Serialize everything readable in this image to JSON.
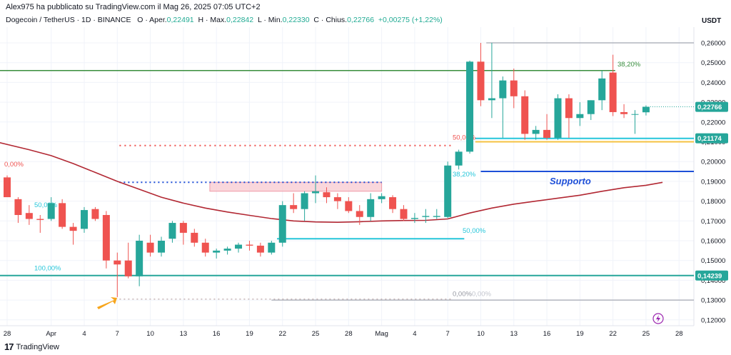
{
  "header": {
    "published_by": "Alex975 ha pubblicato su TradingView.com il Mag 26, 2025 07:05 UTC+2",
    "symbol": "Dogecoin / TetherUS · 1D · BINANCE",
    "open_label": "O · Aper.",
    "open": "0,22491",
    "high_label": "H · Max.",
    "high": "0,22842",
    "low_label": "L · Min.",
    "low": "0,22330",
    "close_label": "C · Chius.",
    "close": "0,22766",
    "change": "+0,00275 (+1,22%)"
  },
  "footer": {
    "brand": "TradingView",
    "logo": "17"
  },
  "chart_data": {
    "type": "candlestick",
    "unit": "USDT",
    "ylim": [
      0.1165,
      0.2685
    ],
    "y_ticks": [
      "0,26000",
      "0,25000",
      "0,24000",
      "0,23000",
      "0,22000",
      "0,21000",
      "0,20000",
      "0,19000",
      "0,18000",
      "0,17000",
      "0,16000",
      "0,15000",
      "0,14000",
      "0,13000",
      "0,12000"
    ],
    "x_tick_labels": [
      {
        "day": 0,
        "label": "28"
      },
      {
        "day": 4,
        "label": "Apr"
      },
      {
        "day": 7,
        "label": "4"
      },
      {
        "day": 10,
        "label": "7"
      },
      {
        "day": 13,
        "label": "10"
      },
      {
        "day": 16,
        "label": "13"
      },
      {
        "day": 19,
        "label": "16"
      },
      {
        "day": 22,
        "label": "19"
      },
      {
        "day": 25,
        "label": "22"
      },
      {
        "day": 28,
        "label": "25"
      },
      {
        "day": 31,
        "label": "28"
      },
      {
        "day": 34,
        "label": "Mag"
      },
      {
        "day": 37,
        "label": "4"
      },
      {
        "day": 40,
        "label": "7"
      },
      {
        "day": 43,
        "label": "10"
      },
      {
        "day": 46,
        "label": "13"
      },
      {
        "day": 49,
        "label": "16"
      },
      {
        "day": 52,
        "label": "19"
      },
      {
        "day": 55,
        "label": "22"
      },
      {
        "day": 58,
        "label": "25"
      },
      {
        "day": 61,
        "label": "28"
      }
    ],
    "candles": [
      {
        "d": 0,
        "o": 0.192,
        "h": 0.193,
        "l": 0.182,
        "c": 0.182
      },
      {
        "d": 1,
        "o": 0.181,
        "h": 0.182,
        "l": 0.169,
        "c": 0.173
      },
      {
        "d": 2,
        "o": 0.174,
        "h": 0.178,
        "l": 0.168,
        "c": 0.171
      },
      {
        "d": 3,
        "o": 0.171,
        "h": 0.173,
        "l": 0.164,
        "c": 0.1705
      },
      {
        "d": 4,
        "o": 0.171,
        "h": 0.182,
        "l": 0.17,
        "c": 0.179
      },
      {
        "d": 5,
        "o": 0.179,
        "h": 0.181,
        "l": 0.166,
        "c": 0.167
      },
      {
        "d": 6,
        "o": 0.167,
        "h": 0.169,
        "l": 0.158,
        "c": 0.165
      },
      {
        "d": 7,
        "o": 0.166,
        "h": 0.177,
        "l": 0.164,
        "c": 0.1755
      },
      {
        "d": 8,
        "o": 0.176,
        "h": 0.177,
        "l": 0.17,
        "c": 0.171
      },
      {
        "d": 9,
        "o": 0.173,
        "h": 0.175,
        "l": 0.146,
        "c": 0.15
      },
      {
        "d": 10,
        "o": 0.15,
        "h": 0.154,
        "l": 0.1315,
        "c": 0.148
      },
      {
        "d": 11,
        "o": 0.15,
        "h": 0.159,
        "l": 0.141,
        "c": 0.142
      },
      {
        "d": 12,
        "o": 0.142,
        "h": 0.163,
        "l": 0.137,
        "c": 0.16
      },
      {
        "d": 13,
        "o": 0.159,
        "h": 0.163,
        "l": 0.152,
        "c": 0.154
      },
      {
        "d": 14,
        "o": 0.154,
        "h": 0.162,
        "l": 0.152,
        "c": 0.16
      },
      {
        "d": 15,
        "o": 0.161,
        "h": 0.17,
        "l": 0.159,
        "c": 0.169
      },
      {
        "d": 16,
        "o": 0.169,
        "h": 0.17,
        "l": 0.158,
        "c": 0.164
      },
      {
        "d": 17,
        "o": 0.164,
        "h": 0.166,
        "l": 0.157,
        "c": 0.159
      },
      {
        "d": 18,
        "o": 0.159,
        "h": 0.161,
        "l": 0.152,
        "c": 0.154
      },
      {
        "d": 19,
        "o": 0.154,
        "h": 0.156,
        "l": 0.151,
        "c": 0.155
      },
      {
        "d": 20,
        "o": 0.155,
        "h": 0.157,
        "l": 0.153,
        "c": 0.156
      },
      {
        "d": 21,
        "o": 0.156,
        "h": 0.159,
        "l": 0.154,
        "c": 0.158
      },
      {
        "d": 22,
        "o": 0.158,
        "h": 0.16,
        "l": 0.155,
        "c": 0.1575
      },
      {
        "d": 23,
        "o": 0.1575,
        "h": 0.159,
        "l": 0.152,
        "c": 0.154
      },
      {
        "d": 24,
        "o": 0.154,
        "h": 0.16,
        "l": 0.153,
        "c": 0.159
      },
      {
        "d": 25,
        "o": 0.159,
        "h": 0.18,
        "l": 0.157,
        "c": 0.178
      },
      {
        "d": 26,
        "o": 0.178,
        "h": 0.184,
        "l": 0.174,
        "c": 0.176
      },
      {
        "d": 27,
        "o": 0.176,
        "h": 0.185,
        "l": 0.17,
        "c": 0.184
      },
      {
        "d": 28,
        "o": 0.184,
        "h": 0.193,
        "l": 0.179,
        "c": 0.185
      },
      {
        "d": 29,
        "o": 0.1845,
        "h": 0.187,
        "l": 0.179,
        "c": 0.182
      },
      {
        "d": 30,
        "o": 0.182,
        "h": 0.184,
        "l": 0.176,
        "c": 0.18
      },
      {
        "d": 31,
        "o": 0.18,
        "h": 0.182,
        "l": 0.174,
        "c": 0.175
      },
      {
        "d": 32,
        "o": 0.175,
        "h": 0.178,
        "l": 0.168,
        "c": 0.172
      },
      {
        "d": 33,
        "o": 0.172,
        "h": 0.184,
        "l": 0.17,
        "c": 0.181
      },
      {
        "d": 34,
        "o": 0.181,
        "h": 0.184,
        "l": 0.179,
        "c": 0.1825
      },
      {
        "d": 35,
        "o": 0.182,
        "h": 0.183,
        "l": 0.174,
        "c": 0.176
      },
      {
        "d": 36,
        "o": 0.176,
        "h": 0.178,
        "l": 0.17,
        "c": 0.171
      },
      {
        "d": 37,
        "o": 0.171,
        "h": 0.174,
        "l": 0.169,
        "c": 0.1715
      },
      {
        "d": 38,
        "o": 0.172,
        "h": 0.176,
        "l": 0.169,
        "c": 0.1725
      },
      {
        "d": 39,
        "o": 0.172,
        "h": 0.176,
        "l": 0.171,
        "c": 0.1725
      },
      {
        "d": 40,
        "o": 0.172,
        "h": 0.2,
        "l": 0.1715,
        "c": 0.198
      },
      {
        "d": 41,
        "o": 0.198,
        "h": 0.206,
        "l": 0.196,
        "c": 0.205
      },
      {
        "d": 42,
        "o": 0.205,
        "h": 0.251,
        "l": 0.204,
        "c": 0.2505
      },
      {
        "d": 43,
        "o": 0.2505,
        "h": 0.26,
        "l": 0.228,
        "c": 0.231
      },
      {
        "d": 44,
        "o": 0.231,
        "h": 0.26,
        "l": 0.222,
        "c": 0.232
      },
      {
        "d": 45,
        "o": 0.232,
        "h": 0.243,
        "l": 0.212,
        "c": 0.241
      },
      {
        "d": 46,
        "o": 0.241,
        "h": 0.247,
        "l": 0.227,
        "c": 0.233
      },
      {
        "d": 47,
        "o": 0.233,
        "h": 0.236,
        "l": 0.211,
        "c": 0.214
      },
      {
        "d": 48,
        "o": 0.214,
        "h": 0.218,
        "l": 0.211,
        "c": 0.216
      },
      {
        "d": 49,
        "o": 0.216,
        "h": 0.224,
        "l": 0.211,
        "c": 0.212
      },
      {
        "d": 50,
        "o": 0.212,
        "h": 0.234,
        "l": 0.211,
        "c": 0.232
      },
      {
        "d": 51,
        "o": 0.232,
        "h": 0.234,
        "l": 0.212,
        "c": 0.222
      },
      {
        "d": 52,
        "o": 0.222,
        "h": 0.23,
        "l": 0.218,
        "c": 0.224
      },
      {
        "d": 53,
        "o": 0.224,
        "h": 0.231,
        "l": 0.221,
        "c": 0.231
      },
      {
        "d": 54,
        "o": 0.231,
        "h": 0.246,
        "l": 0.226,
        "c": 0.242
      },
      {
        "d": 55,
        "o": 0.245,
        "h": 0.254,
        "l": 0.223,
        "c": 0.225
      },
      {
        "d": 56,
        "o": 0.225,
        "h": 0.229,
        "l": 0.222,
        "c": 0.224
      },
      {
        "d": 57,
        "o": 0.224,
        "h": 0.226,
        "l": 0.214,
        "c": 0.224
      },
      {
        "d": 58,
        "o": 0.2249,
        "h": 0.2284,
        "l": 0.2233,
        "c": 0.2277
      }
    ],
    "moving_average": [
      {
        "d": -1,
        "v": 0.21
      },
      {
        "d": 2,
        "v": 0.206
      },
      {
        "d": 4,
        "v": 0.203
      },
      {
        "d": 6,
        "v": 0.199
      },
      {
        "d": 8,
        "v": 0.1945
      },
      {
        "d": 10,
        "v": 0.19
      },
      {
        "d": 12,
        "v": 0.186
      },
      {
        "d": 14,
        "v": 0.182
      },
      {
        "d": 16,
        "v": 0.179
      },
      {
        "d": 18,
        "v": 0.1765
      },
      {
        "d": 20,
        "v": 0.1745
      },
      {
        "d": 22,
        "v": 0.1728
      },
      {
        "d": 24,
        "v": 0.1712
      },
      {
        "d": 26,
        "v": 0.17
      },
      {
        "d": 28,
        "v": 0.1695
      },
      {
        "d": 30,
        "v": 0.1693
      },
      {
        "d": 32,
        "v": 0.1696
      },
      {
        "d": 34,
        "v": 0.17
      },
      {
        "d": 36,
        "v": 0.1702
      },
      {
        "d": 38,
        "v": 0.1703
      },
      {
        "d": 40,
        "v": 0.171
      },
      {
        "d": 42,
        "v": 0.174
      },
      {
        "d": 44,
        "v": 0.1765
      },
      {
        "d": 46,
        "v": 0.1785
      },
      {
        "d": 48,
        "v": 0.18
      },
      {
        "d": 50,
        "v": 0.1815
      },
      {
        "d": 52,
        "v": 0.183
      },
      {
        "d": 54,
        "v": 0.185
      },
      {
        "d": 56,
        "v": 0.1868
      },
      {
        "d": 58,
        "v": 0.188
      },
      {
        "d": 59.5,
        "v": 0.1895
      }
    ],
    "price_badges": [
      {
        "label": "0,22766",
        "value": 0.22766,
        "color": "#26a69a"
      },
      {
        "label": "0,21174",
        "value": 0.21174,
        "color": "#26a69a"
      },
      {
        "label": "0,14239",
        "value": 0.14239,
        "color": "#26a69a"
      }
    ],
    "annotations": {
      "fib_upper": {
        "label_top": "38,20%",
        "label_mid": "50,00%",
        "label_low": "38,20%"
      },
      "fib_lower": {
        "label_0": "0,00%",
        "label_50": "50,00%",
        "label_100": "100,00%"
      },
      "fib_mid": {
        "label_50": "50,00%",
        "label_0a": "0,00%",
        "label_0b": "0,00%"
      },
      "support_label": "Supporto"
    },
    "colors": {
      "up": "#26a69a",
      "down": "#ef5350",
      "ma": "#b22833",
      "green_line": "#388e3c",
      "blue_line": "#1e4fd8",
      "cyan_line": "#26c6da",
      "orange_line": "#f5c242",
      "gray_line": "#b2b5be",
      "pink_box": "#f8c9d0"
    }
  }
}
